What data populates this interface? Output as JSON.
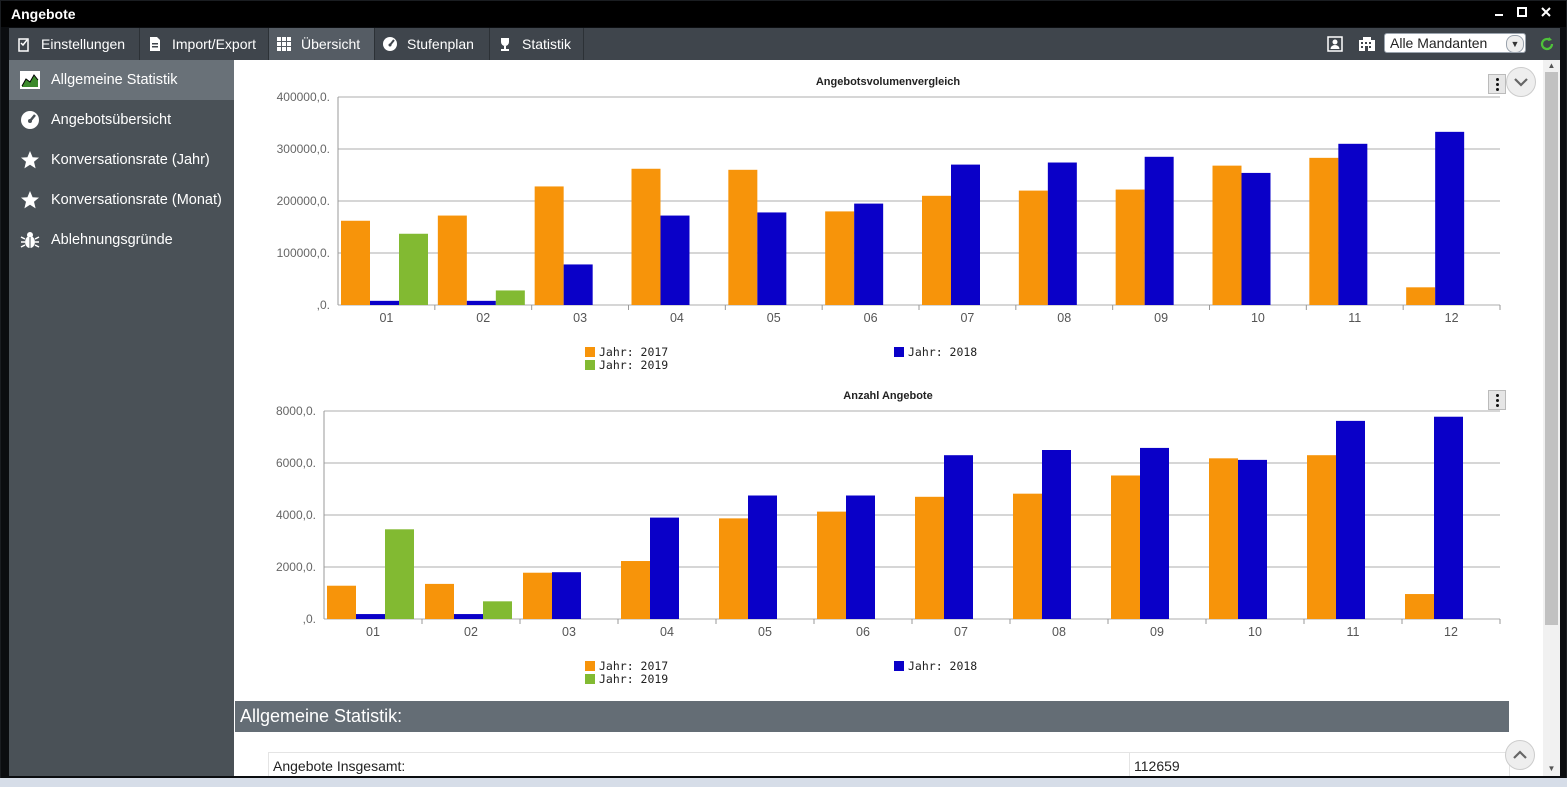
{
  "window": {
    "title": "Angebote",
    "minimize_icon": "minimize-icon",
    "maximize_icon": "maximize-icon",
    "close_icon": "close-icon"
  },
  "toolbar": {
    "items": [
      {
        "label": "Einstellungen",
        "icon": "settings-checklist-icon"
      },
      {
        "label": "Import/Export",
        "icon": "document-icon"
      },
      {
        "label": "Übersicht",
        "icon": "grid-icon",
        "active": true
      },
      {
        "label": "Stufenplan",
        "icon": "gauge-icon"
      },
      {
        "label": "Statistik",
        "icon": "trophy-icon"
      }
    ],
    "mandant_select": {
      "value": "Alle Mandanten"
    },
    "right_icons": [
      "user-portrait-icon",
      "building-icon",
      "refresh-icon"
    ]
  },
  "sidebar": {
    "items": [
      {
        "label": "Allgemeine Statistik",
        "icon": "chart-icon",
        "active": true
      },
      {
        "label": "Angebotsübersicht",
        "icon": "gauge-icon"
      },
      {
        "label": "Konversationsrate (Jahr)",
        "icon": "star-icon"
      },
      {
        "label": "Konversationsrate (Monat)",
        "icon": "star-icon"
      },
      {
        "label": "Ablehnungsgründe",
        "icon": "bug-icon"
      }
    ]
  },
  "colors": {
    "y2017": "#f7940a",
    "y2018": "#0a00c8",
    "y2019": "#82ba32"
  },
  "chart_data": [
    {
      "type": "bar",
      "title": "Angebotsvolumenvergleich",
      "categories": [
        "01",
        "02",
        "03",
        "04",
        "05",
        "06",
        "07",
        "08",
        "09",
        "10",
        "11",
        "12"
      ],
      "series": [
        {
          "name": "Jahr: 2017",
          "values": [
            162000,
            172000,
            228000,
            262000,
            260000,
            180000,
            210000,
            220000,
            222000,
            268000,
            283000,
            34000
          ]
        },
        {
          "name": "Jahr: 2018",
          "values": [
            8000,
            8000,
            78000,
            172000,
            178000,
            195000,
            270000,
            274000,
            285000,
            254000,
            310000,
            333000
          ]
        },
        {
          "name": "Jahr: 2019",
          "values": [
            137000,
            28000,
            null,
            null,
            null,
            null,
            null,
            null,
            null,
            null,
            null,
            null
          ]
        }
      ],
      "yticks": [
        ",0.",
        "100000,0.",
        "200000,0.",
        "300000,0.",
        "400000,0."
      ],
      "ylim": [
        0,
        400000
      ],
      "legend": "bottom"
    },
    {
      "type": "bar",
      "title": "Anzahl Angebote",
      "categories": [
        "01",
        "02",
        "03",
        "04",
        "05",
        "06",
        "07",
        "08",
        "09",
        "10",
        "11",
        "12"
      ],
      "series": [
        {
          "name": "Jahr: 2017",
          "values": [
            1280,
            1350,
            1780,
            2230,
            3870,
            4130,
            4700,
            4820,
            5520,
            6180,
            6300,
            960
          ]
        },
        {
          "name": "Jahr: 2018",
          "values": [
            190,
            190,
            1800,
            3900,
            4750,
            4750,
            6300,
            6500,
            6580,
            6120,
            7620,
            7780
          ]
        },
        {
          "name": "Jahr: 2019",
          "values": [
            3450,
            680,
            null,
            null,
            null,
            null,
            null,
            null,
            null,
            null,
            null,
            null
          ]
        }
      ],
      "yticks": [
        ",0.",
        "2000,0.",
        "4000,0.",
        "6000,0.",
        "8000,0."
      ],
      "ylim": [
        0,
        8000
      ],
      "legend": "bottom"
    }
  ],
  "summary": {
    "header": "Allgemeine Statistik:",
    "rows": [
      {
        "label": "Angebote Insgesamt:",
        "value": "112659"
      }
    ]
  }
}
